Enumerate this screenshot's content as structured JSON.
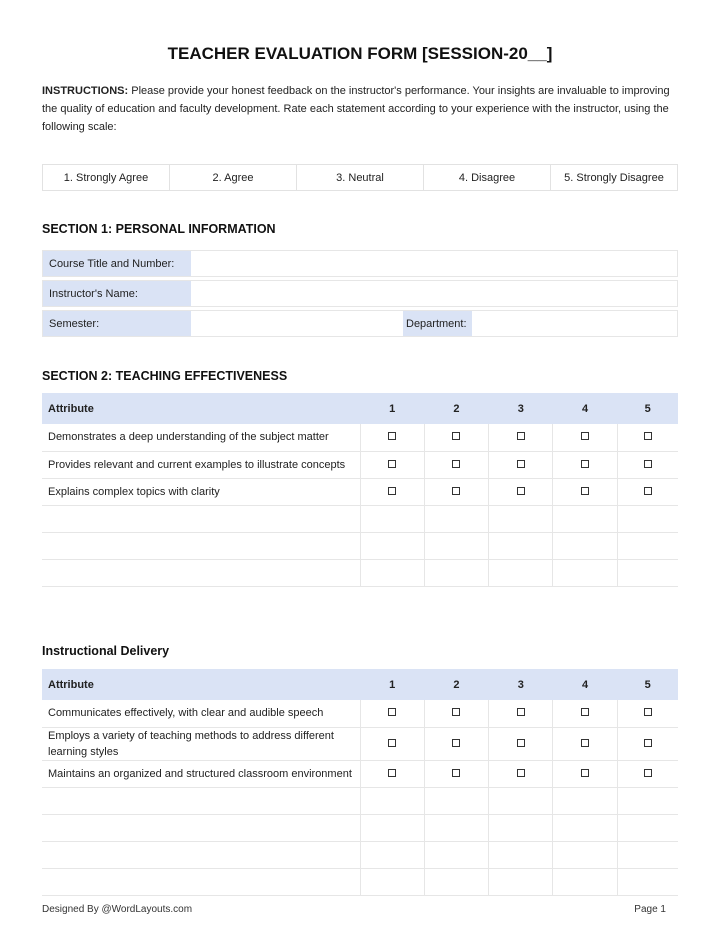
{
  "title": "TEACHER EVALUATION FORM [SESSION-20__]",
  "instructions": {
    "label": "INSTRUCTIONS:",
    "text": " Please provide your honest feedback on the instructor's performance. Your insights are invaluable to improving the quality of education and faculty development. Rate each statement according to your experience with the instructor, using the following scale:"
  },
  "scale": [
    "1.  Strongly Agree",
    "2. Agree",
    "3. Neutral",
    "4. Disagree",
    "5. Strongly Disagree"
  ],
  "section1": {
    "title": "SECTION 1: PERSONAL INFORMATION",
    "course": "Course Title and Number:",
    "instructor": "Instructor's Name:",
    "semester": "Semester:",
    "department": "Department:"
  },
  "section2": {
    "title": "SECTION 2: TEACHING EFFECTIVENESS",
    "header": [
      "Attribute",
      "1",
      "2",
      "3",
      "4",
      "5"
    ],
    "rows": [
      "Demonstrates a deep understanding of the subject matter",
      "Provides relevant and current examples to illustrate concepts",
      "Explains complex topics with clarity",
      "",
      "",
      ""
    ]
  },
  "section3": {
    "title": "Instructional Delivery",
    "header": [
      "Attribute",
      "1",
      "2",
      "3",
      "4",
      "5"
    ],
    "rows": [
      "Communicates effectively, with clear and audible speech",
      "Employs a variety of teaching methods to address different learning styles",
      "Maintains an organized and structured classroom environment",
      "",
      "",
      "",
      ""
    ]
  },
  "footer": {
    "credit": "Designed By @WordLayouts.com",
    "page": "Page  1"
  }
}
